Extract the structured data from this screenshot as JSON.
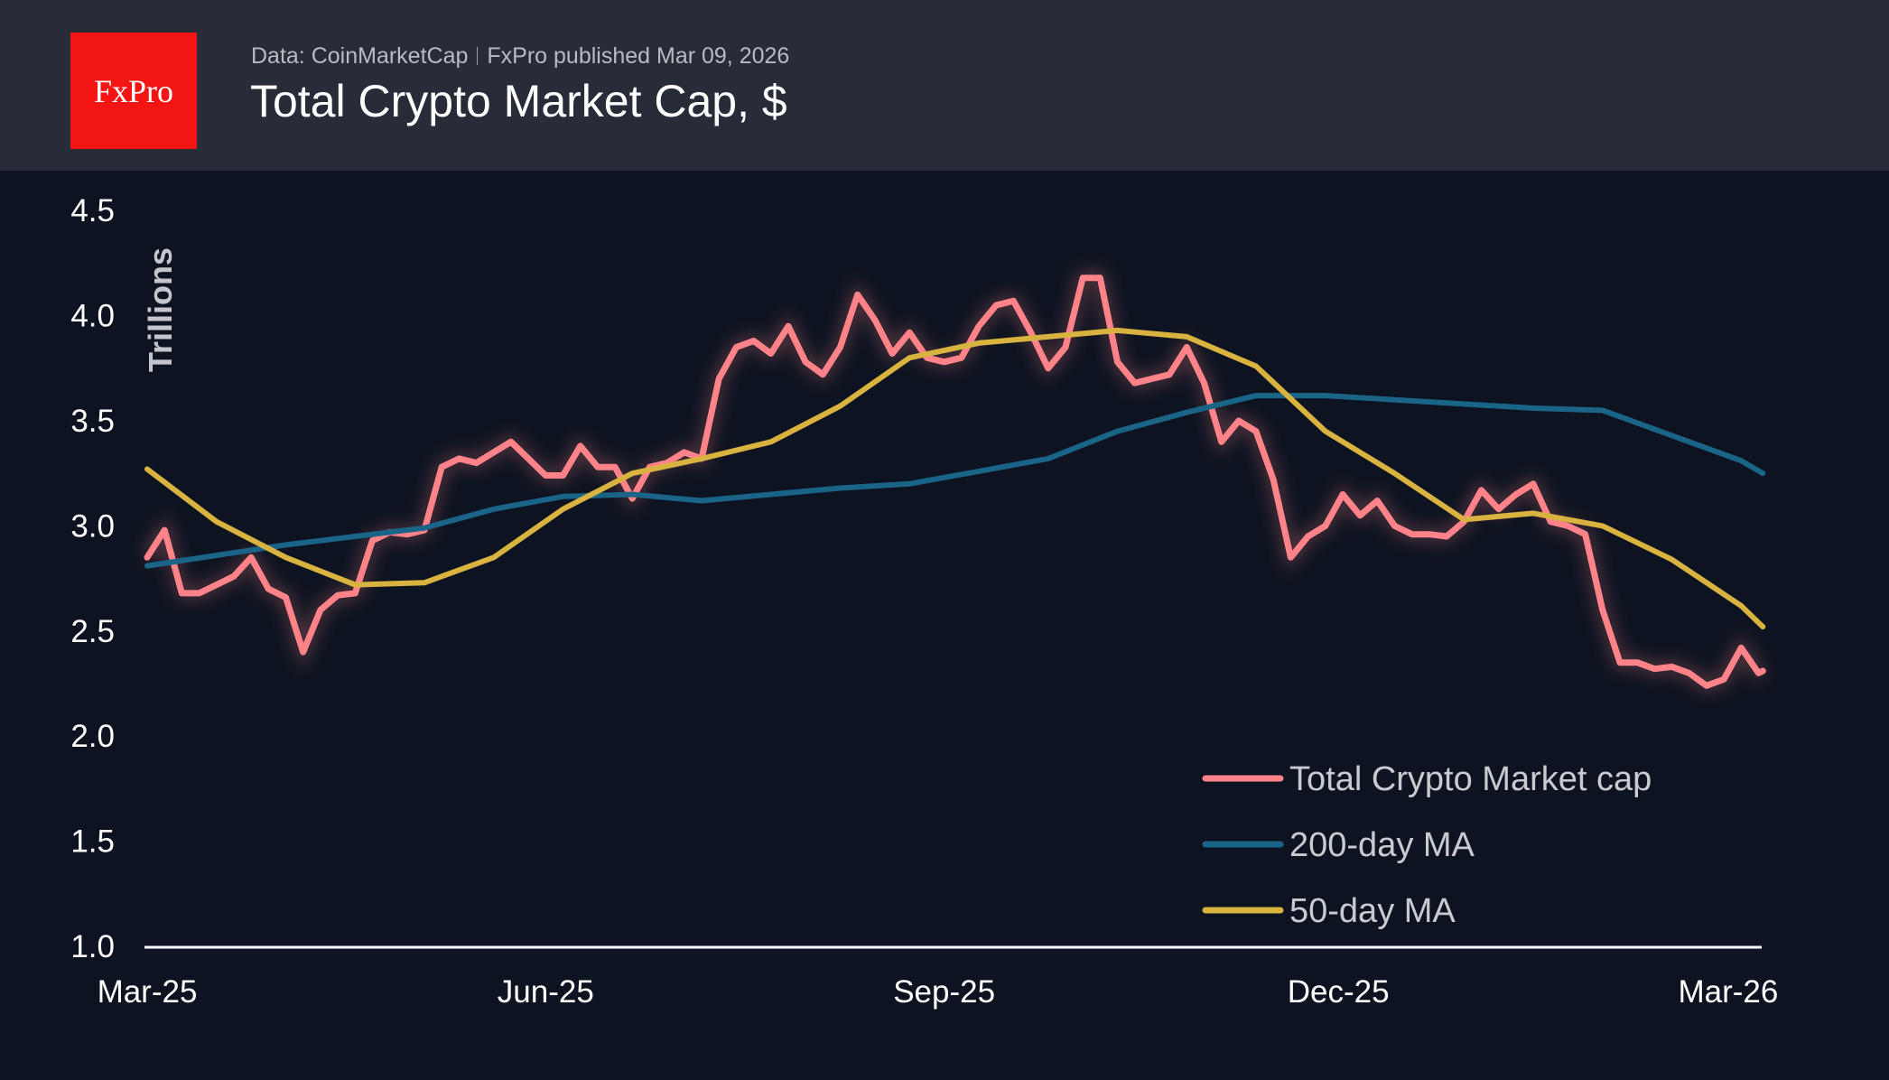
{
  "header": {
    "logo_text": "FxPro",
    "source": "Data: CoinMarketCap",
    "published": "FxPro published Mar 09, 2026",
    "title": "Total Crypto Market Cap, $"
  },
  "colors": {
    "header_bg": "#282b38",
    "plot_bg": "#0d1320",
    "total": "#ff8389",
    "ma200": "#1a6488",
    "ma50": "#d8b340",
    "logo": "#f31414"
  },
  "chart_data": {
    "type": "line",
    "title": "Total Crypto Market Cap, $",
    "ylabel": "Trillions",
    "xlabel": "",
    "ylim": [
      1.0,
      4.5
    ],
    "yticks": [
      "1.0",
      "1.5",
      "2.0",
      "2.5",
      "3.0",
      "3.5",
      "4.0",
      "4.5"
    ],
    "xticks": [
      {
        "label": "Mar-25",
        "date": "2025-03-01"
      },
      {
        "label": "Jun-25",
        "date": "2025-06-01"
      },
      {
        "label": "Sep-25",
        "date": "2025-09-01"
      },
      {
        "label": "Dec-25",
        "date": "2025-12-01"
      },
      {
        "label": "Mar-26",
        "date": "2026-03-01"
      }
    ],
    "grid": false,
    "legend": "bottom-right",
    "series": [
      {
        "name": "Total Crypto Market cap",
        "color": "#ff8389",
        "x": [
          "2025-03-01",
          "2025-03-05",
          "2025-03-09",
          "2025-03-13",
          "2025-03-17",
          "2025-03-21",
          "2025-03-25",
          "2025-03-29",
          "2025-04-02",
          "2025-04-06",
          "2025-04-10",
          "2025-04-14",
          "2025-04-18",
          "2025-04-22",
          "2025-04-26",
          "2025-04-30",
          "2025-05-04",
          "2025-05-08",
          "2025-05-12",
          "2025-05-16",
          "2025-05-20",
          "2025-05-24",
          "2025-05-28",
          "2025-06-01",
          "2025-06-05",
          "2025-06-09",
          "2025-06-13",
          "2025-06-17",
          "2025-06-21",
          "2025-06-25",
          "2025-06-29",
          "2025-07-03",
          "2025-07-07",
          "2025-07-11",
          "2025-07-15",
          "2025-07-19",
          "2025-07-23",
          "2025-07-27",
          "2025-07-31",
          "2025-08-04",
          "2025-08-08",
          "2025-08-12",
          "2025-08-16",
          "2025-08-20",
          "2025-08-24",
          "2025-08-28",
          "2025-09-01",
          "2025-09-05",
          "2025-09-09",
          "2025-09-13",
          "2025-09-17",
          "2025-09-21",
          "2025-09-25",
          "2025-09-29",
          "2025-10-03",
          "2025-10-07",
          "2025-10-11",
          "2025-10-15",
          "2025-10-19",
          "2025-10-23",
          "2025-10-27",
          "2025-10-31",
          "2025-11-04",
          "2025-11-08",
          "2025-11-12",
          "2025-11-16",
          "2025-11-20",
          "2025-11-24",
          "2025-11-28",
          "2025-12-02",
          "2025-12-06",
          "2025-12-10",
          "2025-12-14",
          "2025-12-18",
          "2025-12-22",
          "2025-12-26",
          "2025-12-30",
          "2026-01-03",
          "2026-01-07",
          "2026-01-11",
          "2026-01-15",
          "2026-01-19",
          "2026-01-23",
          "2026-01-27",
          "2026-01-31",
          "2026-02-04",
          "2026-02-08",
          "2026-02-12",
          "2026-02-16",
          "2026-02-20",
          "2026-02-24",
          "2026-02-28",
          "2026-03-04",
          "2026-03-08",
          "2026-03-09"
        ],
        "y": [
          2.85,
          2.98,
          2.68,
          2.68,
          2.72,
          2.76,
          2.85,
          2.7,
          2.66,
          2.4,
          2.6,
          2.67,
          2.68,
          2.93,
          2.97,
          2.96,
          2.98,
          3.28,
          3.32,
          3.3,
          3.35,
          3.4,
          3.32,
          3.24,
          3.24,
          3.38,
          3.28,
          3.28,
          3.13,
          3.28,
          3.3,
          3.35,
          3.32,
          3.7,
          3.85,
          3.88,
          3.82,
          3.95,
          3.78,
          3.72,
          3.85,
          4.1,
          3.98,
          3.82,
          3.92,
          3.8,
          3.78,
          3.8,
          3.95,
          4.05,
          4.07,
          3.92,
          3.75,
          3.85,
          4.18,
          4.18,
          3.78,
          3.68,
          3.7,
          3.72,
          3.85,
          3.68,
          3.4,
          3.5,
          3.45,
          3.22,
          2.85,
          2.95,
          3.0,
          3.15,
          3.05,
          3.12,
          3.0,
          2.96,
          2.96,
          2.95,
          3.02,
          3.17,
          3.08,
          3.15,
          3.2,
          3.02,
          3.0,
          2.96,
          2.6,
          2.35,
          2.35,
          2.32,
          2.33,
          2.3,
          2.24,
          2.27,
          2.42,
          2.3,
          2.31
        ]
      },
      {
        "name": "200-day MA",
        "color": "#1a6488",
        "x": [
          "2025-03-01",
          "2025-03-17",
          "2025-04-02",
          "2025-04-18",
          "2025-05-04",
          "2025-05-20",
          "2025-06-05",
          "2025-06-21",
          "2025-07-07",
          "2025-07-23",
          "2025-08-08",
          "2025-08-24",
          "2025-09-09",
          "2025-09-25",
          "2025-10-11",
          "2025-10-27",
          "2025-11-12",
          "2025-11-28",
          "2025-12-14",
          "2025-12-30",
          "2026-01-15",
          "2026-01-31",
          "2026-02-16",
          "2026-03-04",
          "2026-03-09"
        ],
        "y": [
          2.81,
          2.86,
          2.91,
          2.95,
          2.99,
          3.08,
          3.14,
          3.15,
          3.12,
          3.15,
          3.18,
          3.2,
          3.26,
          3.32,
          3.45,
          3.54,
          3.62,
          3.62,
          3.6,
          3.58,
          3.56,
          3.55,
          3.43,
          3.31,
          3.25
        ]
      },
      {
        "name": "50-day MA",
        "color": "#d8b340",
        "x": [
          "2025-03-01",
          "2025-03-17",
          "2025-04-02",
          "2025-04-18",
          "2025-05-04",
          "2025-05-20",
          "2025-06-05",
          "2025-06-21",
          "2025-07-07",
          "2025-07-23",
          "2025-08-08",
          "2025-08-24",
          "2025-09-09",
          "2025-09-25",
          "2025-10-11",
          "2025-10-27",
          "2025-11-12",
          "2025-11-28",
          "2025-12-14",
          "2025-12-30",
          "2026-01-15",
          "2026-01-31",
          "2026-02-16",
          "2026-03-04",
          "2026-03-09"
        ],
        "y": [
          3.27,
          3.02,
          2.85,
          2.72,
          2.73,
          2.85,
          3.08,
          3.25,
          3.32,
          3.4,
          3.57,
          3.8,
          3.87,
          3.9,
          3.93,
          3.9,
          3.76,
          3.45,
          3.25,
          3.03,
          3.06,
          3.0,
          2.84,
          2.62,
          2.52
        ]
      }
    ]
  }
}
